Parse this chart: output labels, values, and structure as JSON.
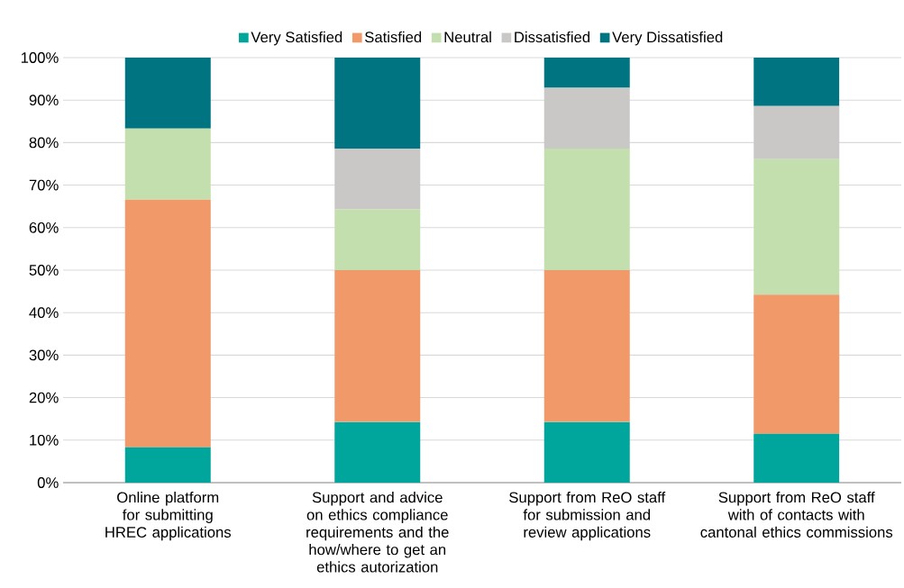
{
  "chart_data": {
    "type": "bar",
    "stacked": true,
    "categories": [
      "Online platform for submitting HREC applications",
      "Support and advice on ethics compliance requirements and the how/where to get an ethics autorization",
      "Support from ReO staff for submission and review applications",
      "Support from ReO staff with of contacts with cantonal ethics commissions"
    ],
    "series": [
      {
        "name": "Very Satisfied",
        "color": "#00a59b",
        "values": [
          8.3,
          14.3,
          14.3,
          11.5
        ]
      },
      {
        "name": "Satisfied",
        "color": "#f2996a",
        "values": [
          58.3,
          35.7,
          35.7,
          32.7
        ]
      },
      {
        "name": "Neutral",
        "color": "#c3dfae",
        "values": [
          16.7,
          14.3,
          28.6,
          31.9
        ]
      },
      {
        "name": "Dissatisfied",
        "color": "#c9c8c6",
        "values": [
          0,
          14.3,
          14.3,
          12.5
        ]
      },
      {
        "name": "Very Dissatisfied",
        "color": "#007480",
        "values": [
          16.7,
          21.4,
          7.1,
          11.4
        ]
      }
    ],
    "ylim": [
      0,
      100
    ],
    "yticks": [
      {
        "value": 0,
        "label": "0%"
      },
      {
        "value": 10,
        "label": "10%"
      },
      {
        "value": 20,
        "label": "20%"
      },
      {
        "value": 30,
        "label": "30%"
      },
      {
        "value": 40,
        "label": "40%"
      },
      {
        "value": 50,
        "label": "50%"
      },
      {
        "value": 60,
        "label": "60%"
      },
      {
        "value": 70,
        "label": "70%"
      },
      {
        "value": 80,
        "label": "80%"
      },
      {
        "value": 90,
        "label": "90%"
      },
      {
        "value": 100,
        "label": "100%"
      }
    ],
    "grid": "y",
    "legend": "top"
  }
}
